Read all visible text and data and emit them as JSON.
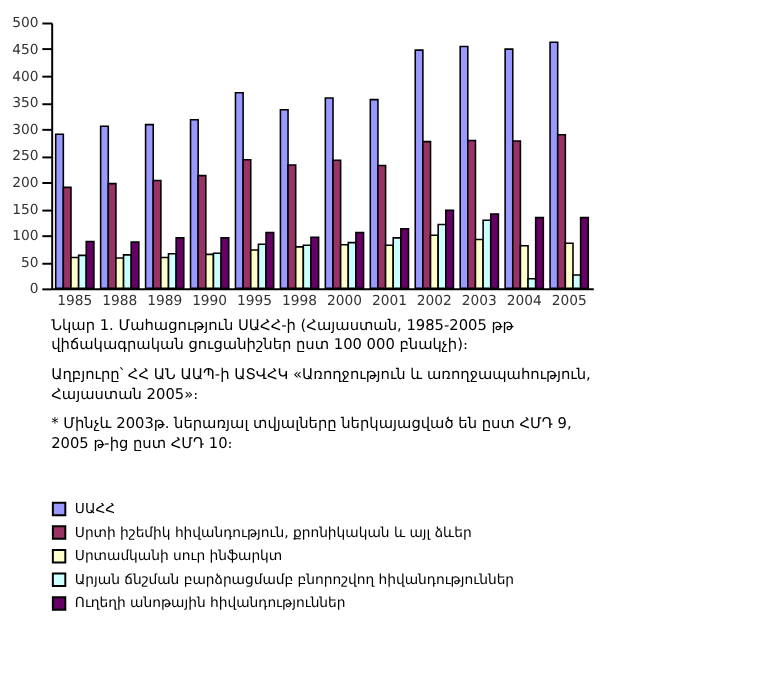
{
  "chart_data": {
    "type": "bar",
    "categories": [
      "1985",
      "1988",
      "1989",
      "1990",
      "1995",
      "1998",
      "2000",
      "2001",
      "2002",
      "2003",
      "2004",
      "2005"
    ],
    "series": [
      {
        "name": "ՍԱՀՀ",
        "color": "#9999ff",
        "values": [
          290,
          305,
          308,
          317,
          368,
          336,
          358,
          355,
          448,
          455,
          450,
          463
        ]
      },
      {
        "name": "Սրտի իշեմիկ հիվանդություն, քրոնիկական և այլ ձևեր",
        "color": "#993366",
        "values": [
          190,
          197,
          203,
          212,
          242,
          232,
          241,
          231,
          276,
          278,
          277,
          289
        ]
      },
      {
        "name": "Սրտամկանի սուր ինֆարկտ",
        "color": "#ffffcc",
        "values": [
          58,
          57,
          58,
          64,
          72,
          78,
          82,
          81,
          100,
          92,
          80,
          85
        ]
      },
      {
        "name": "Արյան ճնշման բարձրացմամբ բնորոշվող  հիվանդություններ",
        "color": "#ccffff",
        "values": [
          62,
          63,
          65,
          66,
          83,
          81,
          86,
          95,
          120,
          128,
          18,
          25
        ]
      },
      {
        "name": "Ուղեղի անոթային հիվանդություններ",
        "color": "#660066",
        "values": [
          88,
          87,
          95,
          95,
          105,
          96,
          105,
          112,
          147,
          140,
          133,
          133
        ]
      }
    ],
    "ylim": [
      0,
      500
    ],
    "yticks": [
      0,
      50,
      100,
      150,
      200,
      250,
      300,
      350,
      400,
      450,
      500
    ],
    "grid": false,
    "legend": "bottom",
    "annotations": [
      "Նկար 1. Մահացություն ՍԱՀՀ-ի (Հայաստան, 1985-2005 թթ վիճակագրական ցուցանիշներ ըստ 100 000 բնակչի)։",
      "Աղբյուրը՝ ՀՀ ԱՆ ԱԱՊ-ի ԱՏՎՀԿ «Առողջություն և առողջապահություն, Հայաստան 2005»։",
      "* Մինչև 2003թ. ներառյալ տվյալները ներկայացված են ըստ ՀՄԴ 9, 2005 թ-ից ըստ ՀՄԴ 10։"
    ]
  }
}
